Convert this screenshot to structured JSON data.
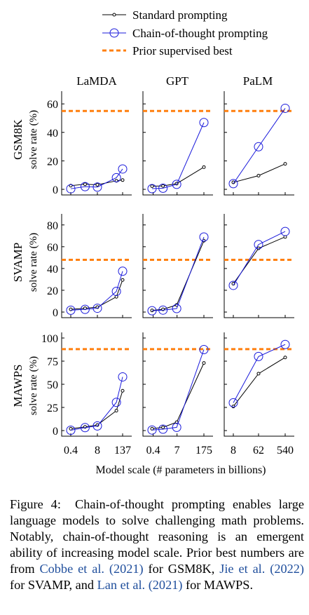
{
  "legend": {
    "standard": "Standard prompting",
    "cot": "Chain-of-thought prompting",
    "prior": "Prior supervised best"
  },
  "xlabel": "Model scale (# parameters in billions)",
  "colors": {
    "standard": "#000000",
    "cot": "#1a1adb",
    "prior": "#ff7f0e"
  },
  "models": [
    "LaMDA",
    "GPT",
    "PaLM"
  ],
  "caption": {
    "lead": "Figure 4:  Chain-of-thought prompting enables large language models to solve challenging math problems.  Notably, chain-of-thought reasoning is an emergent ability of increasing model scale. Prior best numbers are from ",
    "cite1": "Cobbe et al. (2021)",
    "mid1": " for GSM8K, ",
    "cite2": "Jie et al. (2022)",
    "mid2": " for SVAMP, and ",
    "cite3": "Lan et al. (2021)",
    "tail": " for MAWPS."
  },
  "chart_data": {
    "type": "line",
    "columns": [
      {
        "model": "LaMDA",
        "xticks": [
          "0.4",
          "8",
          "137"
        ],
        "x": [
          0.4,
          2,
          8,
          68,
          137
        ]
      },
      {
        "model": "GPT",
        "xticks": [
          "0.4",
          "7",
          "175"
        ],
        "x": [
          0.35,
          1.3,
          6.7,
          175
        ]
      },
      {
        "model": "PaLM",
        "xticks": [
          "8",
          "62",
          "540"
        ],
        "x": [
          8,
          62,
          540
        ]
      }
    ],
    "rows": [
      {
        "dataset": "GSM8K",
        "ylabel": "solve rate (%)",
        "ylim": [
          0,
          65
        ],
        "yticks": [
          "0",
          "20",
          "40",
          "60"
        ],
        "prior_best": 55,
        "standard": [
          [
            2.6,
            3.6,
            3.2,
            6.0,
            6.5
          ],
          [
            2.2,
            2.4,
            4.0,
            15.6
          ],
          [
            4.9,
            9.6,
            17.9
          ]
        ],
        "cot": [
          [
            0.4,
            1.9,
            1.6,
            8.2,
            14.3
          ],
          [
            0.5,
            0.8,
            3.5,
            46.9
          ],
          [
            4.0,
            29.9,
            56.9
          ]
        ]
      },
      {
        "dataset": "SVAMP",
        "ylabel": "solve rate (%)",
        "ylim": [
          0,
          85
        ],
        "yticks": [
          "0",
          "20",
          "40",
          "60",
          "80"
        ],
        "prior_best": 48,
        "standard": [
          [
            2.5,
            3.5,
            4.5,
            14.0,
            29.5
          ],
          [
            1.5,
            2.5,
            6.5,
            65.5
          ],
          [
            26.0,
            58.5,
            69.0
          ]
        ],
        "cot": [
          [
            1.7,
            2.5,
            3.5,
            19.0,
            37.5
          ],
          [
            1.2,
            1.8,
            3.2,
            68.9
          ],
          [
            24.5,
            62.0,
            74.0
          ]
        ]
      },
      {
        "dataset": "MAWPS",
        "ylabel": "solve rate (%)",
        "ylim": [
          0,
          100
        ],
        "yticks": [
          "0",
          "25",
          "50",
          "75",
          "100"
        ],
        "prior_best": 88,
        "standard": [
          [
            2.0,
            4.0,
            6.0,
            21.5,
            43.0
          ],
          [
            2.0,
            3.5,
            9.0,
            73.0
          ],
          [
            26.0,
            61.5,
            79.0
          ]
        ],
        "cot": [
          [
            0.4,
            3.2,
            5.0,
            30.5,
            58.0
          ],
          [
            0.6,
            1.5,
            3.5,
            87.5
          ],
          [
            30.0,
            80.0,
            93.0
          ]
        ]
      }
    ]
  }
}
